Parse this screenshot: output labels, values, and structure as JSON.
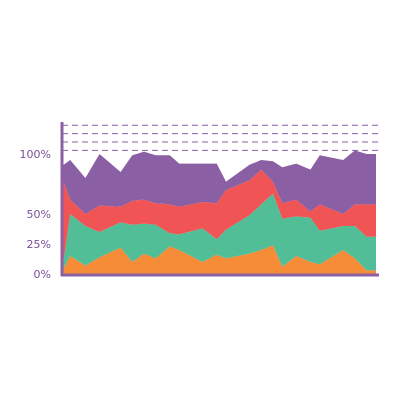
{
  "colors": {
    "axis": "#8a5fa3",
    "grid": "#8a5fa3",
    "tick_text": "#7a4f96",
    "series": [
      "#f68b38",
      "#52be98",
      "#f05454",
      "#8a5fa3"
    ]
  },
  "chart_data": {
    "type": "area",
    "stacked": true,
    "title": "",
    "xlabel": "",
    "ylabel": "",
    "ylim": [
      0,
      125
    ],
    "y_ticks": [
      {
        "value": 0,
        "label": "0%"
      },
      {
        "value": 25,
        "label": "25%"
      },
      {
        "value": 50,
        "label": "50%"
      },
      {
        "value": 100,
        "label": "100%"
      }
    ],
    "gridlines": [
      103,
      110,
      117,
      124
    ],
    "x": [
      0,
      0.35,
      1,
      1.6,
      2.5,
      3,
      3.5,
      4,
      4.6,
      5,
      6,
      6.6,
      7,
      8,
      8.5,
      9,
      9.4,
      10,
      10.6,
      11,
      12,
      12.5,
      13,
      13.4
    ],
    "series": [
      {
        "values": [
          2,
          15,
          7,
          14,
          22,
          10,
          17,
          13,
          23,
          20,
          10,
          16,
          13,
          17,
          20,
          24,
          6,
          15,
          10,
          8,
          20,
          13,
          3,
          3
        ]
      },
      {
        "values": [
          0,
          35,
          33,
          21,
          21,
          31,
          25,
          28,
          11,
          13,
          28,
          13,
          24,
          32,
          38,
          43,
          40,
          33,
          37,
          28,
          20,
          27,
          28,
          28
        ]
      },
      {
        "values": [
          78,
          12,
          10,
          22,
          13,
          20,
          20,
          18,
          24,
          23,
          22,
          30,
          33,
          29,
          29,
          10,
          13,
          14,
          5,
          22,
          10,
          18,
          27,
          27
        ]
      },
      {
        "values": [
          10,
          33,
          30,
          43,
          29,
          38,
          40,
          40,
          41,
          36,
          32,
          33,
          7,
          13,
          8,
          17,
          30,
          30,
          35,
          41,
          45,
          45,
          42,
          42
        ]
      }
    ]
  }
}
